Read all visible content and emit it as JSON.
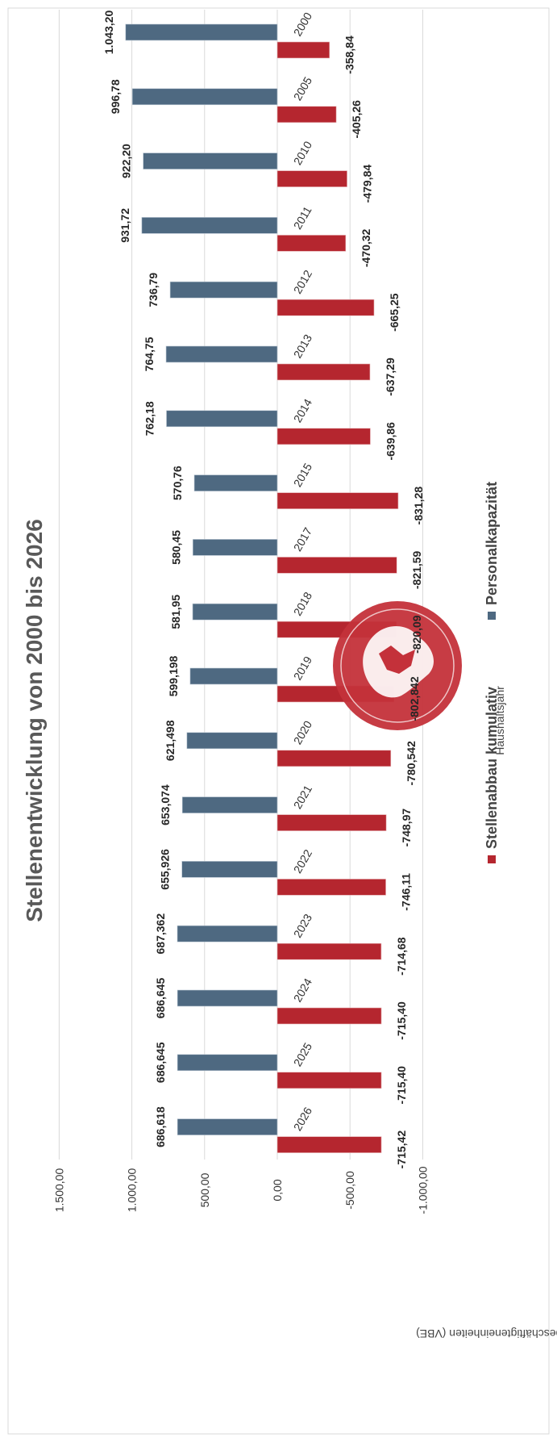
{
  "chart_data": {
    "type": "bar",
    "title": "Stellenentwicklung von 2000 bis 2026",
    "xlabel": "Haushaltsjahr",
    "ylabel": "Vollbeschäftigteneinheiten (VBE)",
    "ylim": [
      -1000,
      1500
    ],
    "ticks": [
      {
        "value": 1500,
        "label": "1.500,00"
      },
      {
        "value": 1000,
        "label": "1.000,00"
      },
      {
        "value": 500,
        "label": "500,00"
      },
      {
        "value": 0,
        "label": "0,00"
      },
      {
        "value": -500,
        "label": "-500,00"
      },
      {
        "value": -1000,
        "label": "-1.000,00"
      }
    ],
    "grid": true,
    "legend_position": "bottom",
    "categories": [
      "2000",
      "2005",
      "2010",
      "2011",
      "2012",
      "2013",
      "2014",
      "2015",
      "2017",
      "2018",
      "2019",
      "2020",
      "2021",
      "2022",
      "2023",
      "2024",
      "2025",
      "2026"
    ],
    "series": [
      {
        "name": "Personalkapazität",
        "color": "#4e6981",
        "values": [
          1043.2,
          996.78,
          922.2,
          931.72,
          736.79,
          764.75,
          762.18,
          570.76,
          580.45,
          581.95,
          599.198,
          621.498,
          653.074,
          655.926,
          687.362,
          686.645,
          686.645,
          686.618
        ],
        "labels": [
          "1.043,20",
          "996,78",
          "922,20",
          "931,72",
          "736,79",
          "764,75",
          "762,18",
          "570,76",
          "580,45",
          "581,95",
          "599,198",
          "621,498",
          "653,074",
          "655,926",
          "687,362",
          "686,645",
          "686,645",
          "686,618"
        ]
      },
      {
        "name": "Stellenabbau kumulativ",
        "color": "#b5262f",
        "values": [
          -358.84,
          -405.26,
          -479.84,
          -470.32,
          -665.25,
          -637.29,
          -639.86,
          -831.28,
          -821.59,
          -820.09,
          -802.842,
          -780.542,
          -748.97,
          -746.11,
          -714.68,
          -715.4,
          -715.4,
          -715.42
        ],
        "labels": [
          "-358,84",
          "-405,26",
          "-479,84",
          "-470,32",
          "-665,25",
          "-637,29",
          "-639,86",
          "-831,28",
          "-821,59",
          "-820,09",
          "-802,842",
          "-780,542",
          "-748,97",
          "-746,11",
          "-714,68",
          "-715,40",
          "-715,40",
          "-715,42"
        ]
      }
    ]
  }
}
